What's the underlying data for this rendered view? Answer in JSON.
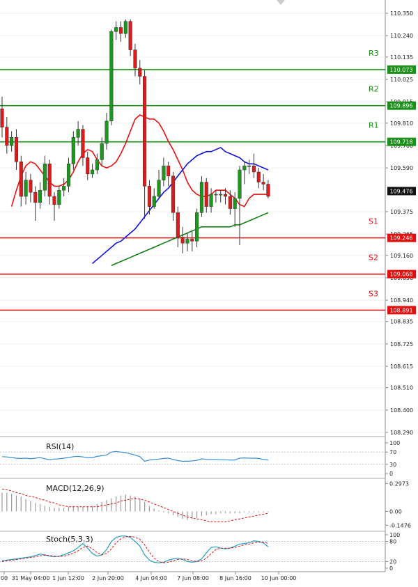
{
  "chart_data": [
    {
      "type": "candlestick",
      "y_ticks": [
        110.35,
        110.24,
        110.135,
        110.025,
        109.915,
        109.81,
        109.7,
        109.59,
        109.375,
        109.265,
        109.16,
        109.05,
        108.94,
        108.835,
        108.725,
        108.615,
        108.51,
        108.4,
        108.29
      ],
      "ylim": [
        108.285,
        110.39
      ],
      "x_labels": [
        "00",
        "31 May 04:00",
        "1 Jun 12:00",
        "2 Jun 20:00",
        "4 Jun 04:00",
        "7 Jun 08:00",
        "8 Jun 16:00",
        "10 Jun 00:00"
      ],
      "current_price": 109.476,
      "levels": [
        {
          "name": "R3",
          "value": 110.073,
          "color": "#1a8f1a"
        },
        {
          "name": "R2",
          "value": 109.896,
          "color": "#1a8f1a"
        },
        {
          "name": "R1",
          "value": 109.718,
          "color": "#1a8f1a"
        },
        {
          "name": "S1",
          "value": 109.246,
          "color": "#e01010"
        },
        {
          "name": "S2",
          "value": 109.068,
          "color": "#e01010"
        },
        {
          "name": "S3",
          "value": 108.891,
          "color": "#e01010"
        }
      ],
      "candles": [
        [
          109.88,
          109.79,
          109.94,
          109.74
        ],
        [
          109.79,
          109.7,
          109.84,
          109.66
        ],
        [
          109.7,
          109.74,
          109.77,
          109.67
        ],
        [
          109.74,
          109.62,
          109.78,
          109.58
        ],
        [
          109.62,
          109.45,
          109.65,
          109.4
        ],
        [
          109.45,
          109.53,
          109.57,
          109.41
        ],
        [
          109.53,
          109.47,
          109.56,
          109.42
        ],
        [
          109.47,
          109.42,
          109.5,
          109.33
        ],
        [
          109.42,
          109.48,
          109.52,
          109.39
        ],
        [
          109.48,
          109.61,
          109.65,
          109.45
        ],
        [
          109.61,
          109.45,
          109.63,
          109.41
        ],
        [
          109.45,
          109.41,
          109.47,
          109.33
        ],
        [
          109.41,
          109.48,
          109.5,
          109.39
        ],
        [
          109.48,
          109.5,
          109.54,
          109.45
        ],
        [
          109.5,
          109.61,
          109.64,
          109.47
        ],
        [
          109.61,
          109.74,
          109.77,
          109.58
        ],
        [
          109.74,
          109.78,
          109.82,
          109.7
        ],
        [
          109.78,
          109.64,
          109.8,
          109.6
        ],
        [
          109.64,
          109.56,
          109.67,
          109.53
        ],
        [
          109.56,
          109.58,
          109.61,
          109.54
        ],
        [
          109.58,
          109.63,
          109.66,
          109.56
        ],
        [
          109.63,
          109.71,
          109.74,
          109.6
        ],
        [
          109.71,
          109.82,
          109.86,
          109.68
        ],
        [
          109.82,
          110.26,
          110.27,
          109.8
        ],
        [
          110.26,
          110.28,
          110.31,
          110.22
        ],
        [
          110.28,
          110.25,
          110.31,
          110.21
        ],
        [
          110.25,
          110.31,
          110.32,
          110.23
        ],
        [
          110.31,
          110.17,
          110.32,
          110.14
        ],
        [
          110.17,
          110.08,
          110.2,
          110.04
        ],
        [
          110.08,
          110.04,
          110.12,
          110.0
        ],
        [
          110.04,
          109.5,
          110.07,
          109.34
        ],
        [
          109.5,
          109.4,
          109.53,
          109.36
        ],
        [
          109.4,
          109.45,
          109.49,
          109.39
        ],
        [
          109.45,
          109.53,
          109.58,
          109.44
        ],
        [
          109.53,
          109.6,
          109.64,
          109.5
        ],
        [
          109.6,
          109.55,
          109.62,
          109.5
        ],
        [
          109.55,
          109.37,
          109.57,
          109.33
        ],
        [
          109.37,
          109.25,
          109.4,
          109.2
        ],
        [
          109.25,
          109.22,
          109.3,
          109.17
        ],
        [
          109.22,
          109.24,
          109.27,
          109.18
        ],
        [
          109.24,
          109.23,
          109.28,
          109.18
        ],
        [
          109.23,
          109.37,
          109.39,
          109.2
        ],
        [
          109.37,
          109.52,
          109.55,
          109.35
        ],
        [
          109.52,
          109.4,
          109.54,
          109.37
        ],
        [
          109.4,
          109.46,
          109.49,
          109.37
        ],
        [
          109.46,
          109.46,
          109.48,
          109.42
        ],
        [
          109.46,
          109.46,
          109.48,
          109.42
        ],
        [
          109.46,
          109.45,
          109.49,
          109.41
        ],
        [
          109.45,
          109.39,
          109.48,
          109.36
        ],
        [
          109.39,
          109.44,
          109.47,
          109.3
        ],
        [
          109.44,
          109.58,
          109.6,
          109.21
        ],
        [
          109.58,
          109.6,
          109.62,
          109.51
        ],
        [
          109.6,
          109.6,
          109.63,
          109.56
        ],
        [
          109.6,
          109.57,
          109.66,
          109.54
        ],
        [
          109.57,
          109.52,
          109.59,
          109.49
        ],
        [
          109.52,
          109.51,
          109.56,
          109.48
        ],
        [
          109.51,
          109.45,
          109.53,
          109.44
        ]
      ],
      "series": [
        {
          "values": [
            109.4,
            109.48,
            109.55,
            109.6,
            109.62,
            109.61,
            109.58,
            109.55,
            109.52,
            109.5,
            109.5,
            109.51,
            109.53,
            109.57,
            109.62,
            109.66,
            109.68,
            109.67,
            109.63,
            109.6,
            109.59,
            109.6,
            109.62,
            109.66,
            109.71,
            109.77,
            109.83,
            109.85,
            109.84,
            109.83,
            109.83,
            109.81,
            109.77,
            109.72,
            109.68,
            109.63,
            109.58,
            109.52,
            109.48,
            109.46,
            109.45,
            109.45,
            109.46,
            109.48,
            109.48,
            109.48,
            109.46,
            109.44,
            109.41,
            109.4,
            109.44,
            109.46,
            109.46,
            109.46,
            109.46
          ]
        },
        {
          "values": [
            109.12,
            109.14,
            109.16,
            109.18,
            109.2,
            109.22,
            109.23,
            109.25,
            109.27,
            109.29,
            109.32,
            109.35,
            109.38,
            109.41,
            109.44,
            109.47,
            109.49,
            109.52,
            109.55,
            109.58,
            109.61,
            109.63,
            109.65,
            109.66,
            109.67,
            109.67,
            109.68,
            109.69,
            109.67,
            109.66,
            109.65,
            109.64,
            109.62,
            109.61,
            109.61,
            109.6,
            109.59,
            109.58
          ]
        },
        {
          "values": [
            109.11,
            109.12,
            109.13,
            109.14,
            109.15,
            109.16,
            109.17,
            109.18,
            109.19,
            109.2,
            109.21,
            109.22,
            109.23,
            109.24,
            109.25,
            109.26,
            109.27,
            109.28,
            109.29,
            109.3,
            109.3,
            109.3,
            109.3,
            109.3,
            109.3,
            109.3,
            109.31,
            109.31,
            109.32,
            109.33,
            109.34,
            109.35,
            109.36,
            109.37
          ]
        }
      ]
    },
    {
      "type": "line",
      "title": "RSI(14)",
      "y_ticks": [
        100,
        70,
        30,
        0
      ],
      "ylim": [
        0,
        100
      ],
      "series": [
        {
          "values": [
            55,
            54,
            52,
            50,
            49,
            50,
            48,
            50,
            52,
            48,
            45,
            47,
            48,
            50,
            52,
            55,
            56,
            54,
            52,
            52,
            56,
            58,
            60,
            70,
            72,
            70,
            68,
            64,
            60,
            55,
            40,
            44,
            46,
            47,
            49,
            50,
            46,
            42,
            40,
            40,
            41,
            43,
            48,
            46,
            46,
            46,
            45,
            45,
            44,
            44,
            50,
            51,
            50,
            50,
            49,
            46,
            44
          ]
        }
      ]
    },
    {
      "type": "bar",
      "title": "MACD(12,26,9)",
      "y_ticks": [
        "0.2973",
        "0.00",
        "-0.1476"
      ],
      "ylim": [
        -0.19,
        0.33
      ],
      "values": [
        0.2,
        0.2,
        0.19,
        0.17,
        0.16,
        0.13,
        0.11,
        0.09,
        0.08,
        0.06,
        0.05,
        0.04,
        0.04,
        0.04,
        0.05,
        0.06,
        0.05,
        0.05,
        0.05,
        0.06,
        0.08,
        0.1,
        0.12,
        0.14,
        0.16,
        0.17,
        0.18,
        0.17,
        0.16,
        0.14,
        0.1,
        0.06,
        0.03,
        0.01,
        -0.01,
        -0.02,
        -0.04,
        -0.06,
        -0.08,
        -0.09,
        -0.08,
        -0.07,
        -0.05,
        -0.04,
        -0.03,
        -0.03,
        -0.02,
        -0.02,
        -0.02,
        -0.02,
        -0.02,
        -0.01,
        -0.01,
        -0.01,
        -0.01,
        -0.01,
        -0.01
      ],
      "signal": [
        0.24,
        0.23,
        0.22,
        0.2,
        0.19,
        0.17,
        0.16,
        0.15,
        0.13,
        0.12,
        0.1,
        0.09,
        0.07,
        0.06,
        0.05,
        0.05,
        0.05,
        0.05,
        0.05,
        0.05,
        0.05,
        0.06,
        0.07,
        0.08,
        0.09,
        0.11,
        0.12,
        0.13,
        0.14,
        0.13,
        0.12,
        0.1,
        0.08,
        0.06,
        0.04,
        0.02,
        0.0,
        -0.02,
        -0.04,
        -0.06,
        -0.07,
        -0.08,
        -0.09,
        -0.1,
        -0.11,
        -0.11,
        -0.11,
        -0.11,
        -0.1,
        -0.09,
        -0.08,
        -0.07,
        -0.06,
        -0.05,
        -0.04,
        -0.03,
        -0.02
      ]
    },
    {
      "type": "line",
      "title": "Stoch(5,3,3)",
      "y_ticks": [
        100,
        80,
        20,
        0
      ],
      "ylim": [
        0,
        100
      ],
      "series": [
        {
          "values": [
            22,
            24,
            26,
            28,
            30,
            32,
            34,
            38,
            42,
            40,
            36,
            34,
            36,
            40,
            46,
            52,
            62,
            74,
            60,
            44,
            36,
            40,
            56,
            80,
            92,
            96,
            96,
            92,
            80,
            66,
            40,
            24,
            18,
            16,
            18,
            24,
            28,
            30,
            26,
            20,
            18,
            20,
            28,
            46,
            62,
            64,
            60,
            58,
            60,
            66,
            72,
            74,
            76,
            82,
            80,
            76,
            64
          ]
        },
        {
          "values": [
            20,
            22,
            24,
            26,
            28,
            30,
            32,
            34,
            37,
            39,
            38,
            36,
            35,
            36,
            40,
            45,
            52,
            62,
            66,
            58,
            46,
            40,
            44,
            58,
            76,
            88,
            94,
            95,
            93,
            86,
            70,
            48,
            30,
            20,
            16,
            18,
            22,
            26,
            28,
            26,
            22,
            20,
            22,
            30,
            44,
            56,
            60,
            60,
            60,
            62,
            66,
            70,
            72,
            76,
            78,
            78,
            74
          ]
        }
      ]
    }
  ]
}
